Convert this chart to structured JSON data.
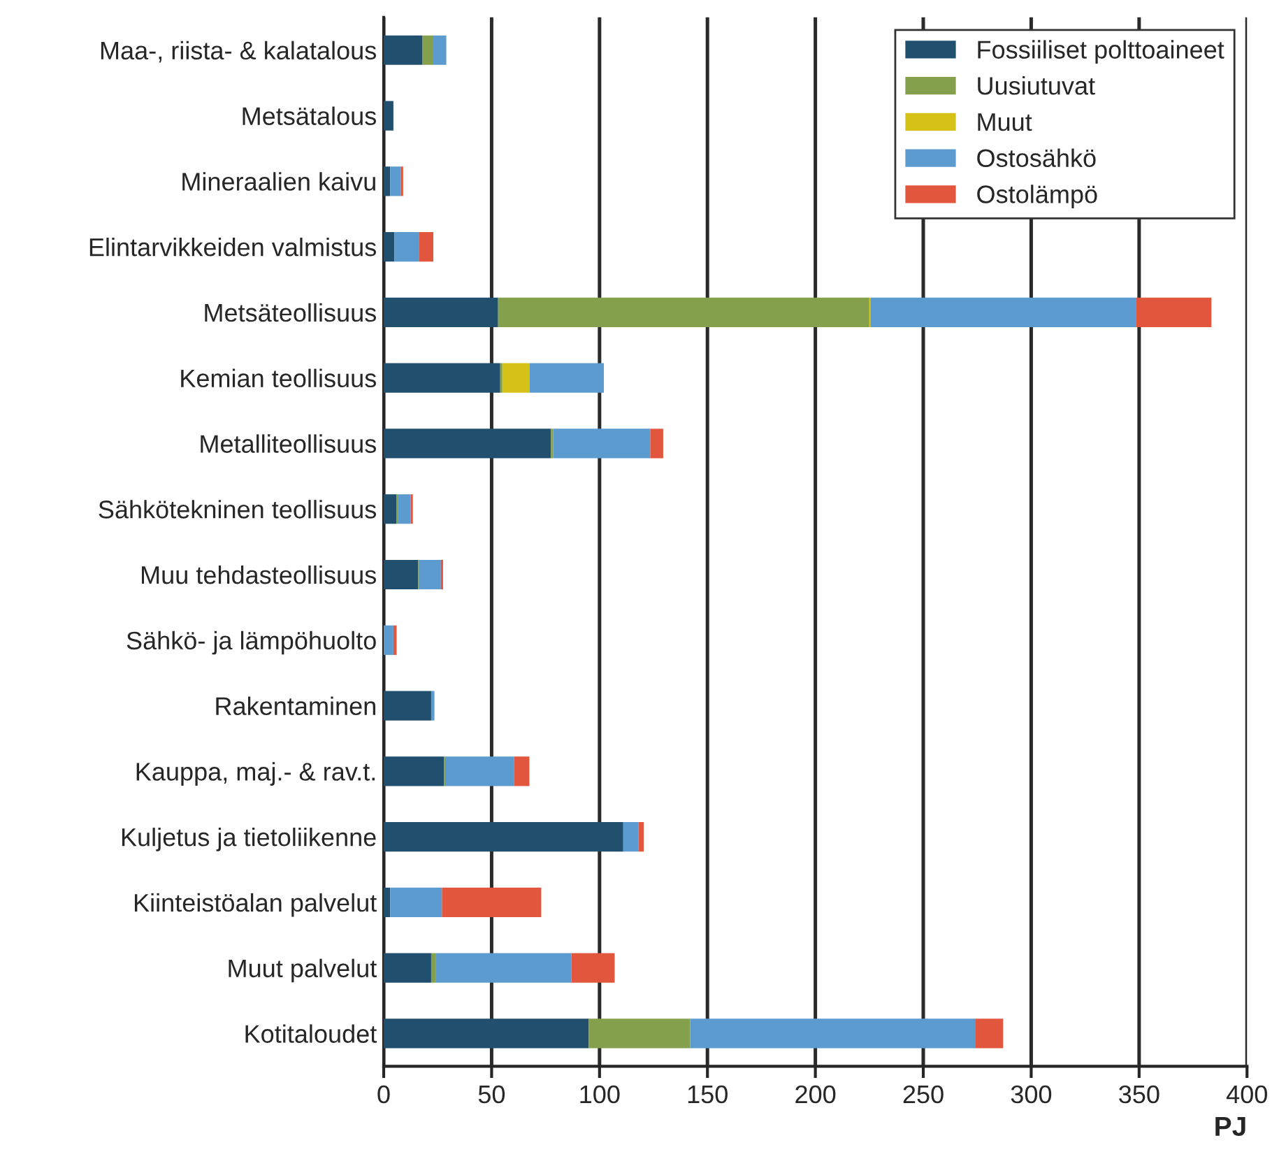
{
  "chart_data": {
    "type": "bar",
    "orientation": "horizontal",
    "stacked": true,
    "xlabel": "PJ",
    "categories": [
      "Maa-, riista- & kalatalous",
      "Metsätalous",
      "Mineraalien kaivu",
      "Elintarvikkeiden valmistus",
      "Metsäteollisuus",
      "Kemian teollisuus",
      "Metalliteollisuus",
      "Sähkötekninen teollisuus",
      "Muu tehdasteollisuus",
      "Sähkö- ja lämpöhuolto",
      "Rakentaminen",
      "Kauppa, maj.- & rav.t.",
      "Kuljetus ja tietoliikenne",
      "Kiinteistöalan palvelut",
      "Muut palvelut",
      "Kotitaloudet"
    ],
    "series": [
      {
        "name": "Fossiiliset polttoaineet",
        "color": "#21506f",
        "values": [
          18,
          4.5,
          3,
          5,
          53,
          54,
          77.5,
          6,
          16,
          0,
          22,
          28,
          111,
          3,
          22,
          95
        ]
      },
      {
        "name": "Uusiutuvat",
        "color": "#84a04c",
        "values": [
          5,
          0,
          0,
          0,
          172,
          1,
          1,
          0.5,
          0.5,
          0,
          0,
          0.5,
          0,
          0,
          2,
          47
        ]
      },
      {
        "name": "Muut",
        "color": "#d6c217",
        "values": [
          0,
          0,
          0,
          0,
          0.5,
          12.5,
          0,
          0,
          0,
          0,
          0,
          0,
          0,
          0,
          0,
          0
        ]
      },
      {
        "name": "Ostosähkö",
        "color": "#5b9bcf",
        "values": [
          6,
          0,
          5,
          11.5,
          123,
          34.5,
          45,
          6,
          10,
          4.5,
          1.5,
          32,
          7,
          24,
          63,
          132
        ]
      },
      {
        "name": "Ostolämpö",
        "color": "#e2563e",
        "values": [
          0,
          0,
          1,
          6.5,
          35,
          0,
          6,
          1,
          1,
          1.5,
          0,
          7,
          2.5,
          46,
          20,
          13
        ]
      }
    ],
    "xlim": [
      0,
      400
    ],
    "xticks": [
      0,
      50,
      100,
      150,
      200,
      250,
      300,
      350,
      400
    ],
    "grid": "x",
    "legend": "top right"
  }
}
